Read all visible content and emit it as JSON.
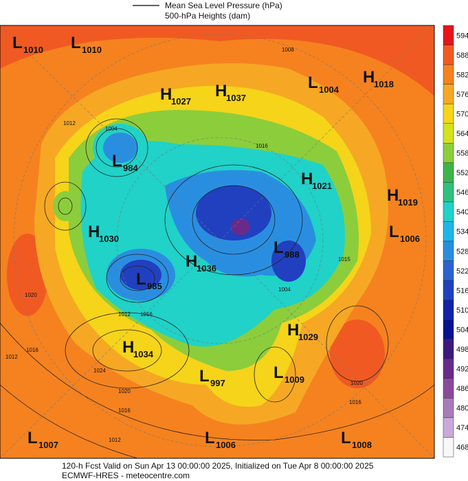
{
  "legend": {
    "mslp": "Mean Sea Level Pressure (hPa)",
    "heights": "500-hPa Heights (dam)"
  },
  "centers": [
    {
      "letter": "L",
      "value": "1010"
    },
    {
      "letter": "L",
      "value": "1010"
    },
    {
      "letter": "H",
      "value": "1027"
    },
    {
      "letter": "H",
      "value": "1037"
    },
    {
      "letter": "L",
      "value": "1004"
    },
    {
      "letter": "H",
      "value": "1018"
    },
    {
      "letter": "L",
      "value": "984"
    },
    {
      "letter": "H",
      "value": "1021"
    },
    {
      "letter": "H",
      "value": "1019"
    },
    {
      "letter": "H",
      "value": "1030"
    },
    {
      "letter": "L",
      "value": "1006"
    },
    {
      "letter": "L",
      "value": "988"
    },
    {
      "letter": "H",
      "value": "1036"
    },
    {
      "letter": "L",
      "value": "985"
    },
    {
      "letter": "H",
      "value": "1029"
    },
    {
      "letter": "H",
      "value": "1034"
    },
    {
      "letter": "L",
      "value": "1009"
    },
    {
      "letter": "L",
      "value": "997"
    },
    {
      "letter": "L",
      "value": "1007"
    },
    {
      "letter": "L",
      "value": "1006"
    },
    {
      "letter": "L",
      "value": "1008"
    }
  ],
  "contour_labels": [
    "1008",
    "1012",
    "1004",
    "1016",
    "1015",
    "1004",
    "1012",
    "1016",
    "1020",
    "1016",
    "1012",
    "1024",
    "1020",
    "1016",
    "1020",
    "1016",
    "1012"
  ],
  "colorbar": {
    "labels": [
      "594",
      "588",
      "582",
      "576",
      "570",
      "564",
      "558",
      "552",
      "546",
      "540",
      "534",
      "528",
      "522",
      "516",
      "510",
      "504",
      "498",
      "492",
      "486",
      "480",
      "474",
      "468"
    ],
    "colors": [
      "#e8141c",
      "#f05a22",
      "#f5821f",
      "#f6a824",
      "#f5d41a",
      "#d2e21c",
      "#8ccd3c",
      "#3cb44a",
      "#2ec07e",
      "#20d2c8",
      "#1eb6e8",
      "#2a8ee0",
      "#2c62d0",
      "#2040c0",
      "#1222a8",
      "#081290",
      "#3c1a7c",
      "#6a2a8a",
      "#8a4a9c",
      "#a97bb9",
      "#c9a9d9",
      "#f8f8f8"
    ]
  },
  "footer": {
    "line1": "120-h Fcst Valid on Sun Apr 13 00:00:00 2025, Initialized on Tue Apr  8 00:00:00 2025",
    "line2": "ECMWF-HRES - meteocentre.com"
  }
}
